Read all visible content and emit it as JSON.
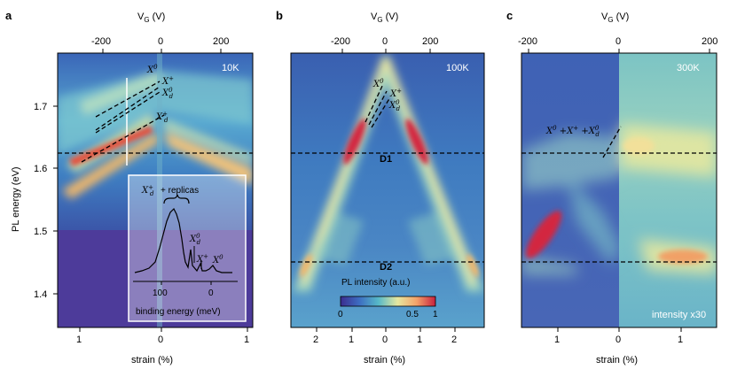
{
  "figure": {
    "panels": [
      {
        "letter": "a",
        "temp": "10K",
        "top_axis_label": "V",
        "top_axis_sub": "G",
        "top_axis_unit": " (V)",
        "top_ticks": [
          "-200",
          "0",
          "200"
        ],
        "bottom_ticks": [
          "1",
          "0",
          "1"
        ],
        "bottom_label": "strain (%)",
        "y_label": "PL energy (eV)",
        "y_ticks": [
          "1.7",
          "1.6",
          "1.5",
          "1.4"
        ],
        "annotations": [
          "X0",
          "X+",
          "X0d",
          "X+d"
        ]
      },
      {
        "letter": "b",
        "temp": "100K",
        "top_axis_label": "V",
        "top_axis_sub": "G",
        "top_axis_unit": " (V)",
        "top_ticks": [
          "-200",
          "0",
          "200"
        ],
        "bottom_ticks": [
          "2",
          "1",
          "0",
          "1",
          "2"
        ],
        "bottom_label": "strain (%)",
        "d_labels": [
          "D1",
          "D2"
        ],
        "colorbar_title": "PL intensity (a.u.)",
        "colorbar_ticks": [
          "0",
          "0.5",
          "1"
        ]
      },
      {
        "letter": "c",
        "temp": "300K",
        "top_axis_label": "V",
        "top_axis_sub": "G",
        "top_axis_unit": " (V)",
        "top_ticks": [
          "-200",
          "0",
          "200"
        ],
        "bottom_ticks": [
          "1",
          "0",
          "1"
        ],
        "bottom_label": "strain (%)",
        "intensity_note": "intensity x30"
      }
    ],
    "inset": {
      "title_main": "+ replicas",
      "x_ticks": [
        "100",
        "0"
      ],
      "x_label": "binding energy (meV)",
      "peaks": [
        "X0d",
        "X+",
        "X0"
      ]
    }
  }
}
